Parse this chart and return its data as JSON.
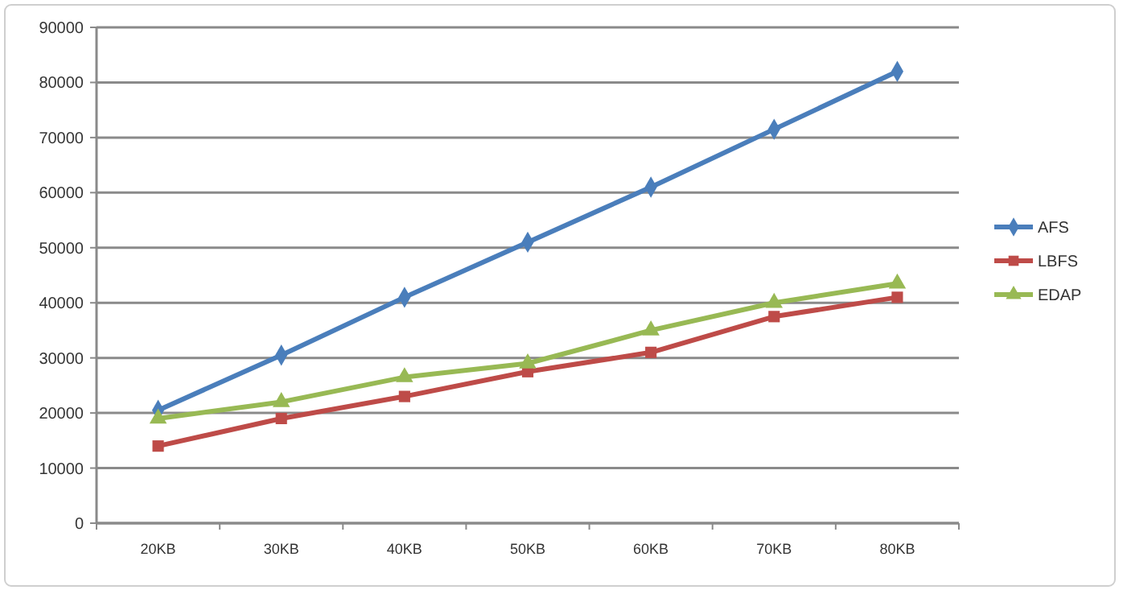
{
  "chart_data": {
    "type": "line",
    "categories": [
      "20KB",
      "30KB",
      "40KB",
      "50KB",
      "60KB",
      "70KB",
      "80KB"
    ],
    "series": [
      {
        "name": "AFS",
        "color": "#4a7ebb",
        "marker": "diamond",
        "values": [
          20500,
          30500,
          41000,
          51000,
          61000,
          71500,
          82000
        ]
      },
      {
        "name": "LBFS",
        "color": "#be4b48",
        "marker": "square",
        "values": [
          14000,
          19000,
          23000,
          27500,
          31000,
          37500,
          41000
        ]
      },
      {
        "name": "EDAP",
        "color": "#98b954",
        "marker": "triangle",
        "values": [
          19000,
          22000,
          26500,
          29000,
          35000,
          40000,
          43500
        ]
      }
    ],
    "ylim": [
      0,
      90000
    ],
    "yticks": [
      0,
      10000,
      20000,
      30000,
      40000,
      50000,
      60000,
      70000,
      80000,
      90000
    ],
    "grid": "y",
    "legend": "right",
    "line_style": "solid"
  }
}
